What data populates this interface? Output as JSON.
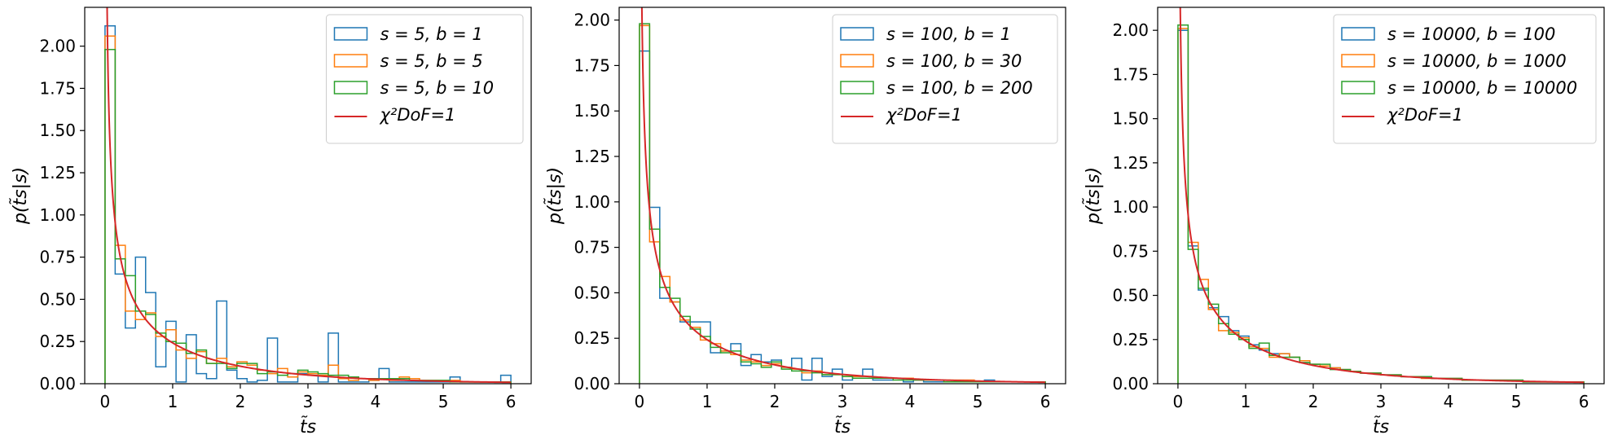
{
  "chart_data": [
    {
      "type": "histogram",
      "xlabel": "t̃s",
      "ylabel": "p(t̃s|s)",
      "xlim": [
        -0.3,
        6.3
      ],
      "ylim": [
        0,
        2.23
      ],
      "xticks": [
        "0",
        "1",
        "2",
        "3",
        "4",
        "5",
        "6"
      ],
      "yticks": [
        "0.00",
        "0.25",
        "0.50",
        "0.75",
        "1.00",
        "1.25",
        "1.50",
        "1.75",
        "2.00"
      ],
      "bin_edges": [
        0,
        0.15,
        0.3,
        0.45,
        0.6,
        0.75,
        0.9,
        1.05,
        1.2,
        1.35,
        1.5,
        1.65,
        1.8,
        1.95,
        2.1,
        2.25,
        2.4,
        2.55,
        2.7,
        2.85,
        3.0,
        3.15,
        3.3,
        3.45,
        3.6,
        3.75,
        3.9,
        4.05,
        4.2,
        4.35,
        4.5,
        4.65,
        4.8,
        4.95,
        5.1,
        5.25,
        5.4,
        5.55,
        5.7,
        5.85,
        6.0
      ],
      "legend_position": "top-right",
      "series": [
        {
          "name": "s = 5, b = 1",
          "color": "#1f77b4",
          "values": [
            2.12,
            0.65,
            0.33,
            0.75,
            0.54,
            0.1,
            0.37,
            0.01,
            0.29,
            0.06,
            0.03,
            0.49,
            0.08,
            0.03,
            0.01,
            0.02,
            0.27,
            0.01,
            0.01,
            0.06,
            0.05,
            0.01,
            0.3,
            0.01,
            0.01,
            0.01,
            0.02,
            0.09,
            0.01,
            0.01,
            0.01,
            0.01,
            0.01,
            0.01,
            0.04,
            0.01,
            0.01,
            0.01,
            0.01,
            0.05
          ]
        },
        {
          "name": "s = 5, b = 5",
          "color": "#ff7f0e",
          "values": [
            2.06,
            0.82,
            0.43,
            0.38,
            0.42,
            0.28,
            0.32,
            0.2,
            0.15,
            0.19,
            0.12,
            0.15,
            0.1,
            0.13,
            0.11,
            0.08,
            0.06,
            0.09,
            0.04,
            0.07,
            0.06,
            0.05,
            0.11,
            0.03,
            0.02,
            0.03,
            0.02,
            0.03,
            0.02,
            0.04,
            0.03,
            0.02,
            0.02,
            0.02,
            0.02,
            0.01,
            0.01,
            0.01,
            0.01,
            0.01
          ]
        },
        {
          "name": "s = 5, b = 10",
          "color": "#2ca02c",
          "values": [
            1.98,
            0.74,
            0.64,
            0.43,
            0.41,
            0.3,
            0.25,
            0.24,
            0.18,
            0.2,
            0.12,
            0.12,
            0.09,
            0.12,
            0.12,
            0.06,
            0.07,
            0.05,
            0.06,
            0.08,
            0.07,
            0.06,
            0.05,
            0.05,
            0.04,
            0.03,
            0.03,
            0.03,
            0.03,
            0.03,
            0.02,
            0.02,
            0.02,
            0.02,
            0.01,
            0.01,
            0.01,
            0.01,
            0.01,
            0.01
          ]
        },
        {
          "name": "χ²DoF=1",
          "color": "#d62728",
          "kind": "line"
        }
      ]
    },
    {
      "type": "histogram",
      "xlabel": "t̃s",
      "ylabel": "p(t̃s|s)",
      "xlim": [
        -0.3,
        6.3
      ],
      "ylim": [
        0,
        2.07
      ],
      "xticks": [
        "0",
        "1",
        "2",
        "3",
        "4",
        "5",
        "6"
      ],
      "yticks": [
        "0.00",
        "0.25",
        "0.50",
        "0.75",
        "1.00",
        "1.25",
        "1.50",
        "1.75",
        "2.00"
      ],
      "bin_edges": [
        0,
        0.15,
        0.3,
        0.45,
        0.6,
        0.75,
        0.9,
        1.05,
        1.2,
        1.35,
        1.5,
        1.65,
        1.8,
        1.95,
        2.1,
        2.25,
        2.4,
        2.55,
        2.7,
        2.85,
        3.0,
        3.15,
        3.3,
        3.45,
        3.6,
        3.75,
        3.9,
        4.05,
        4.2,
        4.35,
        4.5,
        4.65,
        4.8,
        4.95,
        5.1,
        5.25,
        5.4,
        5.55,
        5.7,
        5.85,
        6.0
      ],
      "legend_position": "top-right",
      "series": [
        {
          "name": "s = 100, b = 1",
          "color": "#1f77b4",
          "values": [
            1.83,
            0.97,
            0.47,
            0.45,
            0.34,
            0.34,
            0.34,
            0.17,
            0.18,
            0.22,
            0.1,
            0.16,
            0.12,
            0.13,
            0.09,
            0.14,
            0.02,
            0.14,
            0.04,
            0.08,
            0.02,
            0.04,
            0.08,
            0.02,
            0.02,
            0.03,
            0.01,
            0.02,
            0.01,
            0.01,
            0.01,
            0.01,
            0.01,
            0.01,
            0.02,
            0.01,
            0.01,
            0.01,
            0.01,
            0.01
          ]
        },
        {
          "name": "s = 100, b = 30",
          "color": "#ff7f0e",
          "values": [
            1.97,
            0.78,
            0.59,
            0.45,
            0.35,
            0.31,
            0.24,
            0.22,
            0.18,
            0.16,
            0.13,
            0.12,
            0.1,
            0.11,
            0.09,
            0.08,
            0.06,
            0.07,
            0.05,
            0.05,
            0.04,
            0.04,
            0.04,
            0.03,
            0.03,
            0.03,
            0.03,
            0.02,
            0.02,
            0.02,
            0.02,
            0.02,
            0.02,
            0.01,
            0.01,
            0.01,
            0.01,
            0.01,
            0.01,
            0.01
          ]
        },
        {
          "name": "s = 100, b = 200",
          "color": "#2ca02c",
          "values": [
            1.98,
            0.85,
            0.53,
            0.47,
            0.37,
            0.3,
            0.26,
            0.2,
            0.17,
            0.18,
            0.12,
            0.11,
            0.09,
            0.12,
            0.08,
            0.07,
            0.07,
            0.06,
            0.05,
            0.05,
            0.04,
            0.03,
            0.03,
            0.03,
            0.03,
            0.02,
            0.02,
            0.02,
            0.02,
            0.02,
            0.01,
            0.01,
            0.01,
            0.01,
            0.01,
            0.01,
            0.01,
            0.01,
            0.01,
            0.01
          ]
        },
        {
          "name": "χ²DoF=1",
          "color": "#d62728",
          "kind": "line"
        }
      ]
    },
    {
      "type": "histogram",
      "xlabel": "t̃s",
      "ylabel": "p(t̃s|s)",
      "xlim": [
        -0.3,
        6.3
      ],
      "ylim": [
        0,
        2.13
      ],
      "xticks": [
        "0",
        "1",
        "2",
        "3",
        "4",
        "5",
        "6"
      ],
      "yticks": [
        "0.00",
        "0.25",
        "0.50",
        "0.75",
        "1.00",
        "1.25",
        "1.50",
        "1.75",
        "2.00"
      ],
      "bin_edges": [
        0,
        0.15,
        0.3,
        0.45,
        0.6,
        0.75,
        0.9,
        1.05,
        1.2,
        1.35,
        1.5,
        1.65,
        1.8,
        1.95,
        2.1,
        2.25,
        2.4,
        2.55,
        2.7,
        2.85,
        3.0,
        3.15,
        3.3,
        3.45,
        3.6,
        3.75,
        3.9,
        4.05,
        4.2,
        4.35,
        4.5,
        4.65,
        4.8,
        4.95,
        5.1,
        5.25,
        5.4,
        5.55,
        5.7,
        5.85,
        6.0
      ],
      "legend_position": "top-right",
      "series": [
        {
          "name": "s = 10000, b = 100",
          "color": "#1f77b4",
          "values": [
            2.0,
            0.78,
            0.53,
            0.43,
            0.38,
            0.3,
            0.27,
            0.22,
            0.19,
            0.17,
            0.17,
            0.15,
            0.12,
            0.11,
            0.1,
            0.09,
            0.08,
            0.07,
            0.06,
            0.06,
            0.05,
            0.05,
            0.04,
            0.04,
            0.04,
            0.03,
            0.03,
            0.03,
            0.02,
            0.02,
            0.02,
            0.02,
            0.02,
            0.02,
            0.01,
            0.01,
            0.01,
            0.01,
            0.01,
            0.01
          ]
        },
        {
          "name": "s = 10000, b = 1000",
          "color": "#ff7f0e",
          "values": [
            2.01,
            0.8,
            0.59,
            0.42,
            0.3,
            0.29,
            0.26,
            0.21,
            0.2,
            0.15,
            0.17,
            0.15,
            0.13,
            0.11,
            0.1,
            0.09,
            0.08,
            0.07,
            0.06,
            0.06,
            0.05,
            0.05,
            0.04,
            0.04,
            0.03,
            0.03,
            0.03,
            0.03,
            0.02,
            0.02,
            0.02,
            0.02,
            0.02,
            0.02,
            0.01,
            0.01,
            0.01,
            0.01,
            0.01,
            0.01
          ]
        },
        {
          "name": "s = 10000, b = 10000",
          "color": "#2ca02c",
          "values": [
            2.03,
            0.76,
            0.54,
            0.45,
            0.34,
            0.28,
            0.25,
            0.2,
            0.23,
            0.16,
            0.15,
            0.15,
            0.12,
            0.11,
            0.11,
            0.08,
            0.08,
            0.07,
            0.06,
            0.06,
            0.05,
            0.05,
            0.04,
            0.04,
            0.04,
            0.03,
            0.03,
            0.03,
            0.02,
            0.02,
            0.02,
            0.02,
            0.02,
            0.02,
            0.01,
            0.01,
            0.01,
            0.01,
            0.01,
            0.01
          ]
        },
        {
          "name": "χ²DoF=1",
          "color": "#d62728",
          "kind": "line"
        }
      ]
    }
  ]
}
